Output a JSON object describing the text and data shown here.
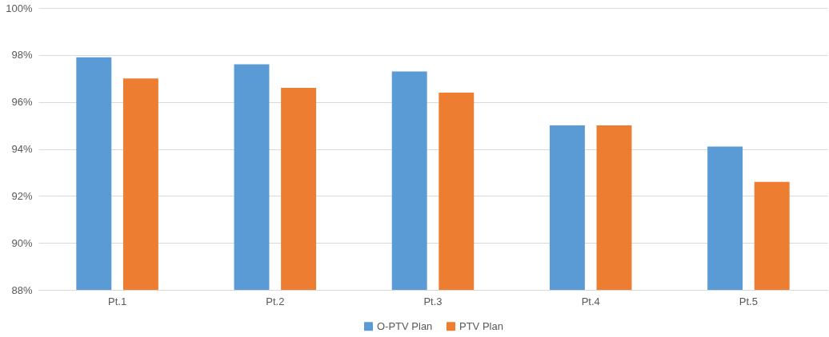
{
  "chart_data": {
    "type": "bar",
    "categories": [
      "Pt.1",
      "Pt.2",
      "Pt.3",
      "Pt.4",
      "Pt.5"
    ],
    "series": [
      {
        "name": "O-PTV Plan",
        "color": "#5b9bd5",
        "values": [
          97.9,
          97.6,
          97.3,
          95.0,
          94.1
        ]
      },
      {
        "name": "PTV Plan",
        "color": "#ed7d31",
        "values": [
          97.0,
          96.6,
          96.4,
          95.0,
          92.6
        ]
      }
    ],
    "ylim": [
      88,
      100
    ],
    "yticks": [
      {
        "value": 88,
        "label": "88%"
      },
      {
        "value": 90,
        "label": "90%"
      },
      {
        "value": 92,
        "label": "92%"
      },
      {
        "value": 94,
        "label": "94%"
      },
      {
        "value": 96,
        "label": "96%"
      },
      {
        "value": 98,
        "label": "98%"
      },
      {
        "value": 100,
        "label": "100%"
      }
    ],
    "grid": "y",
    "legend": "bottom"
  }
}
